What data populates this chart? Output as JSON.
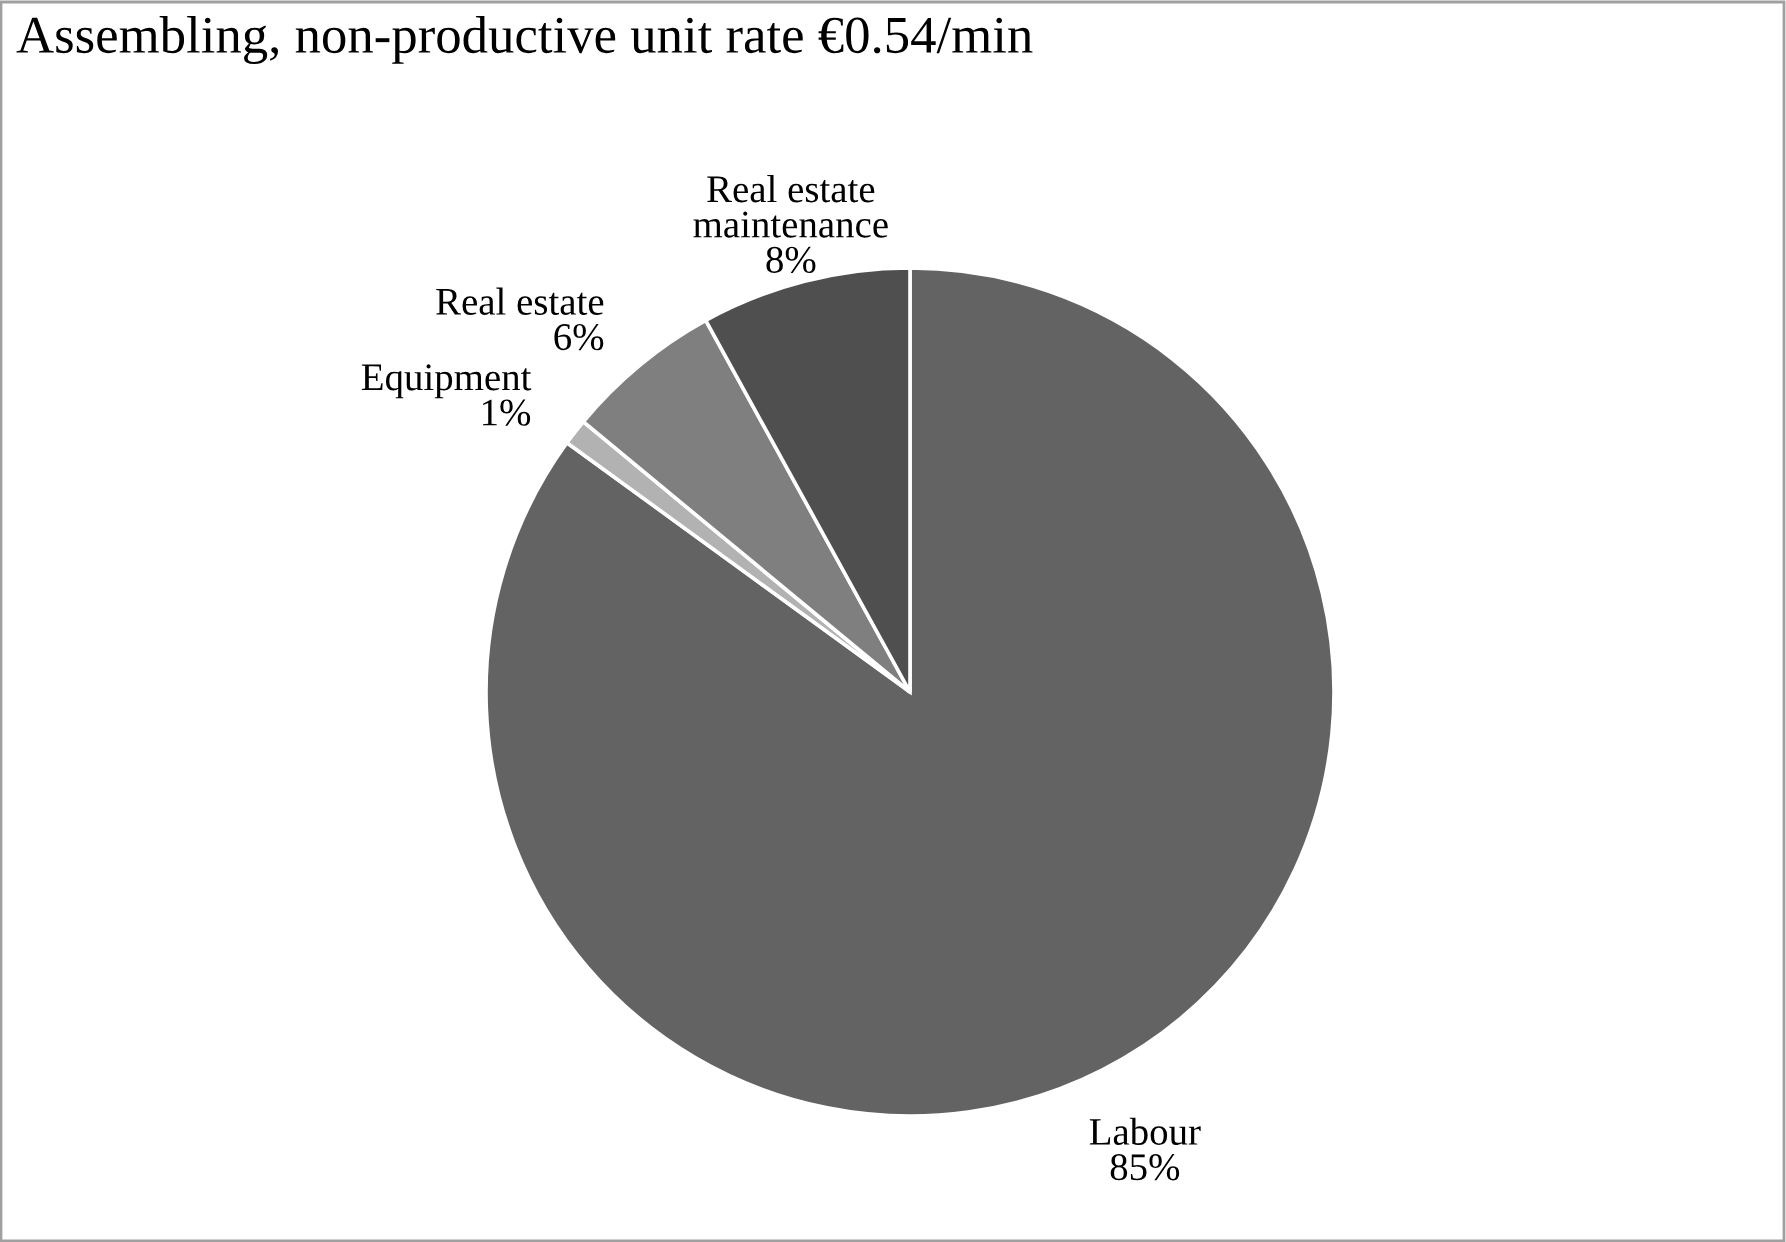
{
  "chart_data": {
    "type": "pie",
    "title": "Assembling, non-productive unit rate €0.54/min",
    "categories": [
      "Labour",
      "Equipment",
      "Real estate",
      "Real estate maintenance"
    ],
    "values": [
      85,
      1,
      6,
      8
    ],
    "value_labels": [
      "85%",
      "1%",
      "6%",
      "8%"
    ],
    "colors": [
      "#636363",
      "#b2b2b2",
      "#7f7f7f",
      "#4f4f4f"
    ],
    "legend": false
  }
}
